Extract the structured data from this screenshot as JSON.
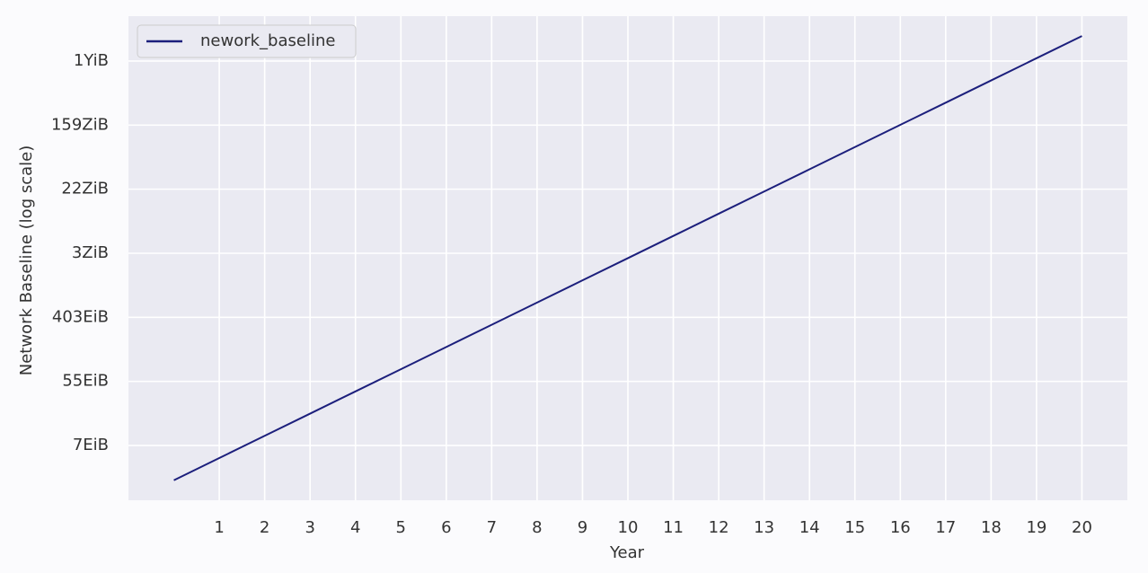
{
  "chart_data": {
    "type": "line",
    "x_label": "Year",
    "y_label": "Network Baseline (log scale)",
    "x": [
      0,
      1,
      2,
      3,
      4,
      5,
      6,
      7,
      8,
      9,
      10,
      11,
      12,
      13,
      14,
      15,
      16,
      17,
      18,
      19,
      20
    ],
    "series": [
      {
        "name": "nework_baseline",
        "color": "#1c1f7c",
        "values": [
          2.5,
          5,
          10,
          20,
          40,
          80,
          160,
          320,
          640,
          1280,
          2560,
          5120,
          10240,
          20480,
          40960,
          81920,
          163840,
          327680,
          655360,
          1310720,
          2621440
        ]
      }
    ],
    "xlim": [
      -1,
      21
    ],
    "xticks": [
      1,
      2,
      3,
      4,
      5,
      6,
      7,
      8,
      9,
      10,
      11,
      12,
      13,
      14,
      15,
      16,
      17,
      18,
      19,
      20
    ],
    "ylim": [
      1.34,
      4870000
    ],
    "yscale": "log",
    "yticks": [
      {
        "value": 7.389,
        "label": "7EiB"
      },
      {
        "value": 54.598,
        "label": "55EiB"
      },
      {
        "value": 403.429,
        "label": "403EiB"
      },
      {
        "value": 2980.958,
        "label": "3ZiB"
      },
      {
        "value": 22026.466,
        "label": "22ZiB"
      },
      {
        "value": 162754.791,
        "label": "159ZiB"
      },
      {
        "value": 1202604.284,
        "label": "1YiB"
      }
    ],
    "grid": true,
    "legend": "upper-left"
  }
}
